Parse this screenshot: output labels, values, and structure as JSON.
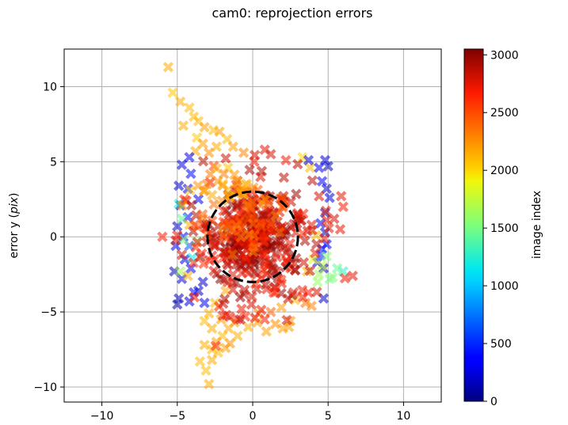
{
  "chart_data": {
    "type": "scatter",
    "title": "cam0: reprojection errors",
    "xlabel": "",
    "ylabel_main": "error y (",
    "ylabel_italic": "pix",
    "ylabel_end": ")",
    "xlim": [
      -12.5,
      12.5
    ],
    "ylim": [
      -11.0,
      12.5
    ],
    "x_ticks": [
      -10,
      -5,
      0,
      5,
      10
    ],
    "x_tick_labels": [
      "−10",
      "−5",
      "0",
      "5",
      "10"
    ],
    "y_ticks": [
      -10,
      -5,
      0,
      5,
      10
    ],
    "y_tick_labels": [
      "−10",
      "−5",
      "0",
      "5",
      "10"
    ],
    "grid": true,
    "marker": "x",
    "marker_alpha": 0.55,
    "reference_circle": {
      "center": [
        0,
        0
      ],
      "radius": 3.0,
      "style": "dashed",
      "color": "#000000"
    },
    "colorbar": {
      "label": "image index",
      "colormap": "jet",
      "range": [
        0,
        3050
      ],
      "ticks": [
        0,
        500,
        1000,
        1500,
        2000,
        2500,
        3000
      ],
      "tick_labels": [
        "0",
        "500",
        "1000",
        "1500",
        "2000",
        "2500",
        "3000"
      ]
    },
    "clusters": [
      {
        "name": "",
        "center": [
          0.0,
          -0.3
        ],
        "spread": [
          1.4,
          1.5
        ],
        "count": 140,
        "index_range": [
          2850,
          3050
        ]
      },
      {
        "name": "",
        "center": [
          0.3,
          -0.2
        ],
        "spread": [
          2.2,
          2.3
        ],
        "count": 230,
        "index_range": [
          2600,
          2950
        ]
      },
      {
        "name": "",
        "center": [
          -0.6,
          1.5
        ],
        "spread": [
          1.5,
          1.3
        ],
        "count": 55,
        "index_range": [
          2200,
          2600
        ]
      },
      {
        "name": "",
        "center": [
          -1.5,
          3.5
        ],
        "spread": [
          1.0,
          0.7
        ],
        "count": 22,
        "index_range": [
          2050,
          2400
        ]
      }
    ],
    "points": [
      [
        -5.6,
        11.3,
        2150
      ],
      [
        -5.3,
        9.6,
        2050
      ],
      [
        -4.8,
        9.0,
        2150
      ],
      [
        -4.2,
        8.6,
        2100
      ],
      [
        -3.9,
        8.0,
        2100
      ],
      [
        -3.6,
        7.7,
        2100
      ],
      [
        -4.6,
        7.4,
        2150
      ],
      [
        -3.2,
        7.3,
        2200
      ],
      [
        -2.6,
        7.1,
        2100
      ],
      [
        -3.7,
        6.6,
        2050
      ],
      [
        -2.2,
        7.0,
        2200
      ],
      [
        -3.3,
        6.2,
        2200
      ],
      [
        -2.4,
        6.0,
        2150
      ],
      [
        -1.7,
        6.5,
        2100
      ],
      [
        -3.8,
        5.7,
        2150
      ],
      [
        -2.9,
        5.6,
        2250
      ],
      [
        -1.3,
        6.0,
        2200
      ],
      [
        -0.6,
        5.6,
        2300
      ],
      [
        0.8,
        5.8,
        2750
      ],
      [
        1.2,
        5.5,
        2800
      ],
      [
        2.2,
        5.1,
        2700
      ],
      [
        3.3,
        5.3,
        2000
      ],
      [
        3.8,
        4.6,
        2100
      ],
      [
        0.1,
        5.0,
        2700
      ],
      [
        -4.2,
        5.3,
        300
      ],
      [
        -4.7,
        4.8,
        250
      ],
      [
        -4.1,
        4.2,
        400
      ],
      [
        -4.9,
        3.4,
        200
      ],
      [
        -4.3,
        3.2,
        350
      ],
      [
        -3.6,
        2.5,
        300
      ],
      [
        -4.8,
        2.1,
        150
      ],
      [
        -4.3,
        1.3,
        400
      ],
      [
        -5.0,
        0.7,
        200
      ],
      [
        -4.6,
        0.0,
        350
      ],
      [
        -5.1,
        -0.6,
        300
      ],
      [
        -4.5,
        -1.5,
        250
      ],
      [
        -5.2,
        -2.3,
        150
      ],
      [
        -4.7,
        -2.8,
        300
      ],
      [
        -4.1,
        -2.1,
        400
      ],
      [
        -3.6,
        -3.6,
        200
      ],
      [
        -4.9,
        -4.1,
        150
      ],
      [
        -4.2,
        -4.3,
        250
      ],
      [
        -3.9,
        -3.7,
        350
      ],
      [
        -3.3,
        -3.0,
        200
      ],
      [
        -5.0,
        -4.5,
        100
      ],
      [
        -3.2,
        -4.4,
        300
      ],
      [
        4.8,
        5.1,
        250
      ],
      [
        4.4,
        4.6,
        300
      ],
      [
        5.0,
        4.7,
        150
      ],
      [
        4.9,
        3.2,
        200
      ],
      [
        4.6,
        3.7,
        350
      ],
      [
        5.1,
        2.6,
        250
      ],
      [
        4.8,
        1.6,
        150
      ],
      [
        4.5,
        0.9,
        300
      ],
      [
        4.8,
        0.3,
        200
      ],
      [
        4.6,
        -0.8,
        400
      ],
      [
        4.3,
        -1.7,
        300
      ],
      [
        4.7,
        -2.1,
        150
      ],
      [
        4.7,
        -4.1,
        200
      ],
      [
        4.5,
        -1.2,
        500
      ],
      [
        4.9,
        -0.5,
        350
      ],
      [
        3.7,
        5.1,
        250
      ],
      [
        -4.2,
        -0.6,
        650
      ],
      [
        -4.7,
        1.2,
        1450
      ],
      [
        -4.0,
        -1.4,
        1150
      ],
      [
        -4.9,
        2.2,
        1250
      ],
      [
        -4.8,
        -2.3,
        1650
      ],
      [
        4.9,
        -1.3,
        1550
      ],
      [
        4.6,
        -1.9,
        1750
      ],
      [
        5.1,
        -2.8,
        1500
      ],
      [
        4.4,
        -2.5,
        1650
      ],
      [
        6.0,
        -2.3,
        1300
      ],
      [
        5.6,
        -2.1,
        1450
      ],
      [
        5.3,
        -2.7,
        1550
      ],
      [
        4.3,
        -3.0,
        1600
      ],
      [
        -3.7,
        -0.3,
        1500
      ],
      [
        -4.6,
        -0.2,
        1550
      ],
      [
        4.0,
        -1.5,
        1850
      ],
      [
        3.6,
        -2.3,
        2150
      ],
      [
        4.2,
        0.1,
        2100
      ],
      [
        -4.2,
        0.8,
        2150
      ],
      [
        -4.3,
        -2.6,
        2150
      ],
      [
        5.8,
        0.5,
        2750
      ],
      [
        6.0,
        2.0,
        2700
      ],
      [
        5.4,
        1.2,
        2800
      ],
      [
        4.4,
        2.7,
        2800
      ],
      [
        4.9,
        1.1,
        2750
      ],
      [
        -4.7,
        -1.2,
        2800
      ],
      [
        -5.0,
        0.1,
        2750
      ],
      [
        -4.4,
        2.4,
        2750
      ],
      [
        -1.8,
        -3.6,
        2150
      ],
      [
        -2.5,
        -4.4,
        2100
      ],
      [
        -2.9,
        -5.1,
        2150
      ],
      [
        -3.2,
        -5.6,
        2100
      ],
      [
        -2.1,
        -5.5,
        2200
      ],
      [
        -2.7,
        -6.1,
        2150
      ],
      [
        -2.0,
        -6.6,
        2100
      ],
      [
        -1.6,
        -6.1,
        2150
      ],
      [
        -2.4,
        -7.0,
        2200
      ],
      [
        -2.7,
        -7.5,
        2100
      ],
      [
        -3.2,
        -7.2,
        2150
      ],
      [
        -2.3,
        -7.7,
        2100
      ],
      [
        -1.8,
        -7.4,
        2200
      ],
      [
        -3.5,
        -8.3,
        2100
      ],
      [
        -2.7,
        -8.2,
        2150
      ],
      [
        -3.1,
        -8.9,
        2100
      ],
      [
        -2.9,
        -9.8,
        2150
      ],
      [
        -1.5,
        -7.1,
        2250
      ],
      [
        -1.0,
        -6.6,
        2150
      ],
      [
        -1.2,
        -5.7,
        2200
      ],
      [
        0.4,
        -5.1,
        2300
      ],
      [
        1.2,
        -5.0,
        2400
      ],
      [
        2.5,
        -5.6,
        2250
      ],
      [
        2.0,
        -6.1,
        2200
      ],
      [
        0.8,
        -5.5,
        2700
      ],
      [
        1.9,
        -4.7,
        2200
      ],
      [
        2.8,
        -4.2,
        2100
      ],
      [
        1.5,
        -5.8,
        2250
      ],
      [
        3.5,
        -4.4,
        2350
      ],
      [
        2.4,
        -6.0,
        2200
      ],
      [
        -0.5,
        -5.3,
        2650
      ],
      [
        0.3,
        -5.7,
        2200
      ],
      [
        3.9,
        -4.6,
        2300
      ],
      [
        -0.3,
        -6.0,
        2150
      ],
      [
        0.9,
        -6.3,
        2200
      ]
    ]
  }
}
